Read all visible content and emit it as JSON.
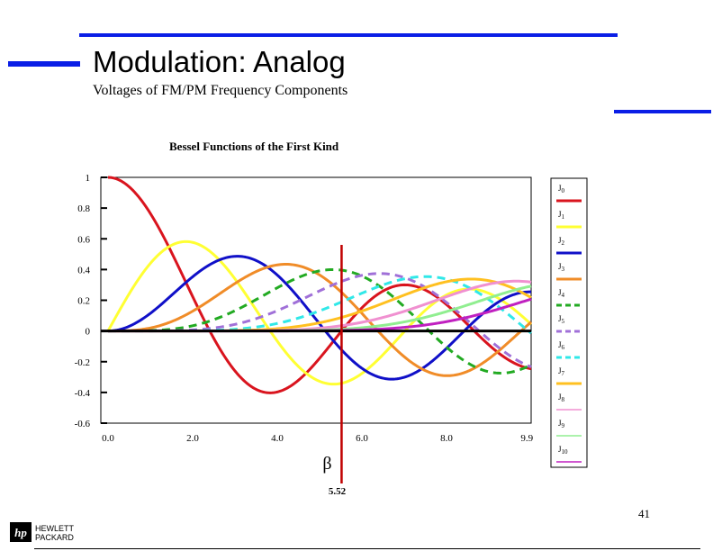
{
  "slide": {
    "title": "Modulation: Analog",
    "subtitle": "Voltages of FM/PM Frequency Components",
    "page_number": "41",
    "accent_color": "#0a1ee6"
  },
  "logo": {
    "line1": "HEWLETT",
    "line2": "PACKARD"
  },
  "chart_data": {
    "type": "line",
    "title": "Bessel Functions of the First Kind",
    "xlabel": "β",
    "ylabel": "",
    "xlim": [
      0,
      10
    ],
    "ylim": [
      -0.6,
      1.0
    ],
    "x_ticks": [
      "0.0",
      "2.0",
      "4.0",
      "6.0",
      "8.0",
      "9.9"
    ],
    "x_tick_values": [
      0,
      2,
      4,
      6,
      8,
      9.9
    ],
    "y_ticks": [
      "1",
      "0.8",
      "0.6",
      "0.4",
      "0.2",
      "0",
      "-0.2",
      "-0.4",
      "-0.6"
    ],
    "y_tick_values": [
      1,
      0.8,
      0.6,
      0.4,
      0.2,
      0,
      -0.2,
      -0.4,
      -0.6
    ],
    "legend_position": "right",
    "marker": {
      "value": 5.52,
      "label": "5.52",
      "color": "#c00000"
    },
    "series": [
      {
        "name": "J0",
        "order": 0,
        "color": "#d9141e",
        "dash": false
      },
      {
        "name": "J1",
        "order": 1,
        "color": "#ffff33",
        "dash": false
      },
      {
        "name": "J2",
        "order": 2,
        "color": "#1010c8",
        "dash": false
      },
      {
        "name": "J3",
        "order": 3,
        "color": "#f08c28",
        "dash": false
      },
      {
        "name": "J4",
        "order": 4,
        "color": "#22aa22",
        "dash": true
      },
      {
        "name": "J5",
        "order": 5,
        "color": "#a070d8",
        "dash": true
      },
      {
        "name": "J6",
        "order": 6,
        "color": "#30e8e8",
        "dash": true
      },
      {
        "name": "J7",
        "order": 7,
        "color": "#ffc020",
        "dash": false
      },
      {
        "name": "J8",
        "order": 8,
        "color": "#f090d0",
        "dash": false
      },
      {
        "name": "J9",
        "order": 9,
        "color": "#90ee90",
        "dash": false
      },
      {
        "name": "J10",
        "order": 10,
        "color": "#c020c0",
        "dash": false
      }
    ]
  }
}
